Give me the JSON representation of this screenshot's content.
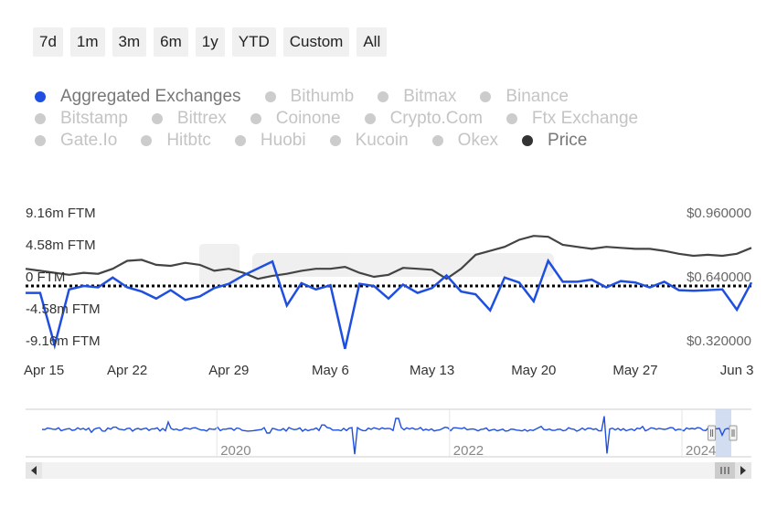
{
  "range_buttons": [
    "7d",
    "1m",
    "3m",
    "6m",
    "1y",
    "YTD",
    "Custom",
    "All"
  ],
  "legend": [
    [
      {
        "label": "Aggregated Exchanges",
        "active": true,
        "color": "#1f4fe0"
      },
      {
        "label": "Bithumb",
        "active": false
      },
      {
        "label": "Bitmax",
        "active": false
      },
      {
        "label": "Binance",
        "active": false
      }
    ],
    [
      {
        "label": "Bitstamp",
        "active": false
      },
      {
        "label": "Bittrex",
        "active": false
      },
      {
        "label": "Coinone",
        "active": false
      },
      {
        "label": "Crypto.Com",
        "active": false
      },
      {
        "label": "Ftx Exchange",
        "active": false
      }
    ],
    [
      {
        "label": "Gate.Io",
        "active": false
      },
      {
        "label": "Hitbtc",
        "active": false
      },
      {
        "label": "Huobi",
        "active": false
      },
      {
        "label": "Kucoin",
        "active": false
      },
      {
        "label": "Okex",
        "active": false
      },
      {
        "label": "Price",
        "active": true,
        "color": "#333333"
      }
    ]
  ],
  "colors": {
    "netflow": "#1f4fe0",
    "price": "#444444",
    "inactive": "#cccccc",
    "zero_line": "#000000"
  },
  "chart_data": {
    "type": "line",
    "title": "",
    "x_range": [
      "2024-04-15",
      "2024-06-04"
    ],
    "x_ticks": [
      {
        "label": "Apr 15",
        "date": "2024-04-15"
      },
      {
        "label": "Apr 22",
        "date": "2024-04-22"
      },
      {
        "label": "Apr 29",
        "date": "2024-04-29"
      },
      {
        "label": "May 6",
        "date": "2024-05-06"
      },
      {
        "label": "May 13",
        "date": "2024-05-13"
      },
      {
        "label": "May 20",
        "date": "2024-05-20"
      },
      {
        "label": "May 27",
        "date": "2024-05-27"
      },
      {
        "label": "Jun 3",
        "date": "2024-06-03"
      }
    ],
    "y_left": {
      "unit": "FTM",
      "ticks": [
        {
          "label": "9.16m FTM",
          "value": 9.16
        },
        {
          "label": "4.58m FTM",
          "value": 4.58
        },
        {
          "label": "0 FTM",
          "value": 0
        },
        {
          "label": "-4.58m FTM",
          "value": -4.58
        },
        {
          "label": "-9.16m FTM",
          "value": -9.16
        }
      ],
      "range": [
        -9.16,
        9.16
      ]
    },
    "y_right": {
      "ticks": [
        {
          "label": "$0.960000",
          "value": 0.96
        },
        {
          "label": "$0.640000",
          "value": 0.64
        },
        {
          "label": "$0.320000",
          "value": 0.32
        }
      ],
      "range": [
        0.32,
        0.96
      ]
    },
    "zero_line": "dotted",
    "series": [
      {
        "name": "Aggregated Exchanges",
        "axis": "left",
        "points": [
          {
            "x": "2024-04-15",
            "y": -1.0
          },
          {
            "x": "2024-04-16",
            "y": -1.0
          },
          {
            "x": "2024-04-17",
            "y": -8.5
          },
          {
            "x": "2024-04-18",
            "y": -0.5
          },
          {
            "x": "2024-04-19",
            "y": 0.0
          },
          {
            "x": "2024-04-20",
            "y": -0.2
          },
          {
            "x": "2024-04-21",
            "y": 1.2
          },
          {
            "x": "2024-04-22",
            "y": -0.2
          },
          {
            "x": "2024-04-23",
            "y": -0.8
          },
          {
            "x": "2024-04-24",
            "y": -1.8
          },
          {
            "x": "2024-04-25",
            "y": -0.6
          },
          {
            "x": "2024-04-26",
            "y": -2.0
          },
          {
            "x": "2024-04-27",
            "y": -1.5
          },
          {
            "x": "2024-04-28",
            "y": -0.3
          },
          {
            "x": "2024-04-29",
            "y": 0.3
          },
          {
            "x": "2024-04-30",
            "y": 1.5
          },
          {
            "x": "2024-05-01",
            "y": 2.5
          },
          {
            "x": "2024-05-02",
            "y": 3.5
          },
          {
            "x": "2024-05-03",
            "y": -2.8
          },
          {
            "x": "2024-05-04",
            "y": 0.4
          },
          {
            "x": "2024-05-05",
            "y": -0.5
          },
          {
            "x": "2024-05-06",
            "y": 0.1
          },
          {
            "x": "2024-05-07",
            "y": -9.0
          },
          {
            "x": "2024-05-08",
            "y": 0.3
          },
          {
            "x": "2024-05-09",
            "y": 0.0
          },
          {
            "x": "2024-05-10",
            "y": -1.8
          },
          {
            "x": "2024-05-11",
            "y": 0.2
          },
          {
            "x": "2024-05-12",
            "y": -1.0
          },
          {
            "x": "2024-05-13",
            "y": -0.3
          },
          {
            "x": "2024-05-14",
            "y": 1.5
          },
          {
            "x": "2024-05-15",
            "y": -0.8
          },
          {
            "x": "2024-05-16",
            "y": -1.2
          },
          {
            "x": "2024-05-17",
            "y": -3.5
          },
          {
            "x": "2024-05-18",
            "y": 1.2
          },
          {
            "x": "2024-05-19",
            "y": 0.5
          },
          {
            "x": "2024-05-20",
            "y": -2.2
          },
          {
            "x": "2024-05-21",
            "y": 3.6
          },
          {
            "x": "2024-05-22",
            "y": 0.6
          },
          {
            "x": "2024-05-23",
            "y": 0.6
          },
          {
            "x": "2024-05-24",
            "y": 0.9
          },
          {
            "x": "2024-05-25",
            "y": -0.2
          },
          {
            "x": "2024-05-26",
            "y": 0.7
          },
          {
            "x": "2024-05-27",
            "y": 0.5
          },
          {
            "x": "2024-05-28",
            "y": -0.2
          },
          {
            "x": "2024-05-29",
            "y": 0.6
          },
          {
            "x": "2024-05-30",
            "y": -0.6
          },
          {
            "x": "2024-05-31",
            "y": -0.7
          },
          {
            "x": "2024-06-01",
            "y": -0.6
          },
          {
            "x": "2024-06-02",
            "y": -0.5
          },
          {
            "x": "2024-06-03",
            "y": -3.4
          },
          {
            "x": "2024-06-04",
            "y": 0.5
          }
        ]
      },
      {
        "name": "Price",
        "axis": "right",
        "points": [
          {
            "x": "2024-04-15",
            "y": 0.68
          },
          {
            "x": "2024-04-16",
            "y": 0.67
          },
          {
            "x": "2024-04-17",
            "y": 0.66
          },
          {
            "x": "2024-04-18",
            "y": 0.65
          },
          {
            "x": "2024-04-19",
            "y": 0.66
          },
          {
            "x": "2024-04-20",
            "y": 0.655
          },
          {
            "x": "2024-04-21",
            "y": 0.68
          },
          {
            "x": "2024-04-22",
            "y": 0.72
          },
          {
            "x": "2024-04-23",
            "y": 0.725
          },
          {
            "x": "2024-04-24",
            "y": 0.7
          },
          {
            "x": "2024-04-25",
            "y": 0.695
          },
          {
            "x": "2024-04-26",
            "y": 0.71
          },
          {
            "x": "2024-04-27",
            "y": 0.7
          },
          {
            "x": "2024-04-28",
            "y": 0.67
          },
          {
            "x": "2024-04-29",
            "y": 0.68
          },
          {
            "x": "2024-04-30",
            "y": 0.66
          },
          {
            "x": "2024-05-01",
            "y": 0.63
          },
          {
            "x": "2024-05-02",
            "y": 0.645
          },
          {
            "x": "2024-05-03",
            "y": 0.655
          },
          {
            "x": "2024-05-04",
            "y": 0.67
          },
          {
            "x": "2024-05-05",
            "y": 0.68
          },
          {
            "x": "2024-05-06",
            "y": 0.68
          },
          {
            "x": "2024-05-07",
            "y": 0.69
          },
          {
            "x": "2024-05-08",
            "y": 0.66
          },
          {
            "x": "2024-05-09",
            "y": 0.64
          },
          {
            "x": "2024-05-10",
            "y": 0.65
          },
          {
            "x": "2024-05-11",
            "y": 0.685
          },
          {
            "x": "2024-05-12",
            "y": 0.68
          },
          {
            "x": "2024-05-13",
            "y": 0.675
          },
          {
            "x": "2024-05-14",
            "y": 0.63
          },
          {
            "x": "2024-05-15",
            "y": 0.68
          },
          {
            "x": "2024-05-16",
            "y": 0.75
          },
          {
            "x": "2024-05-17",
            "y": 0.77
          },
          {
            "x": "2024-05-18",
            "y": 0.79
          },
          {
            "x": "2024-05-19",
            "y": 0.825
          },
          {
            "x": "2024-05-20",
            "y": 0.845
          },
          {
            "x": "2024-05-21",
            "y": 0.84
          },
          {
            "x": "2024-05-22",
            "y": 0.8
          },
          {
            "x": "2024-05-23",
            "y": 0.79
          },
          {
            "x": "2024-05-24",
            "y": 0.78
          },
          {
            "x": "2024-05-25",
            "y": 0.79
          },
          {
            "x": "2024-05-26",
            "y": 0.785
          },
          {
            "x": "2024-05-27",
            "y": 0.78
          },
          {
            "x": "2024-05-28",
            "y": 0.78
          },
          {
            "x": "2024-05-29",
            "y": 0.77
          },
          {
            "x": "2024-05-30",
            "y": 0.755
          },
          {
            "x": "2024-05-31",
            "y": 0.745
          },
          {
            "x": "2024-06-01",
            "y": 0.75
          },
          {
            "x": "2024-06-02",
            "y": 0.745
          },
          {
            "x": "2024-06-03",
            "y": 0.755
          },
          {
            "x": "2024-06-04",
            "y": 0.785
          }
        ]
      }
    ],
    "navigator": {
      "x_range": [
        "2018-07-01",
        "2024-06-04"
      ],
      "window": [
        "2024-04-15",
        "2024-06-04"
      ],
      "ticks": [
        {
          "label": "2020",
          "date": "2020-01-01"
        },
        {
          "label": "2022",
          "date": "2022-01-01"
        },
        {
          "label": "2024",
          "date": "2024-01-01"
        }
      ],
      "spikes": [
        {
          "x": "2018-12-01",
          "y": -4
        },
        {
          "x": "2019-02-15",
          "y": 3
        },
        {
          "x": "2019-08-01",
          "y": 10
        },
        {
          "x": "2020-01-05",
          "y": 3
        },
        {
          "x": "2020-06-10",
          "y": -5
        },
        {
          "x": "2020-12-01",
          "y": 6
        },
        {
          "x": "2021-03-10",
          "y": -34
        },
        {
          "x": "2021-07-20",
          "y": 15
        },
        {
          "x": "2021-12-20",
          "y": 3
        },
        {
          "x": "2022-10-15",
          "y": 4
        },
        {
          "x": "2023-04-20",
          "y": -2
        },
        {
          "x": "2023-05-01",
          "y": 18
        },
        {
          "x": "2023-05-12",
          "y": -33
        },
        {
          "x": "2023-09-01",
          "y": 4
        },
        {
          "x": "2024-05-07",
          "y": -8
        }
      ]
    }
  }
}
